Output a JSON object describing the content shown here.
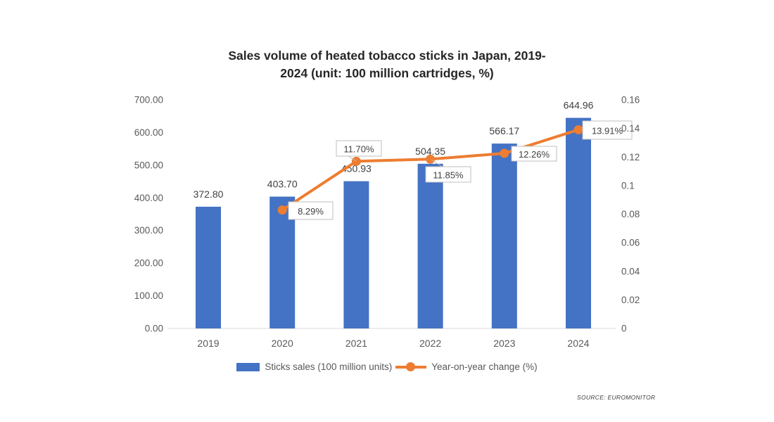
{
  "title": {
    "line1": "Sales volume of heated tobacco sticks in Japan, 2019-",
    "line2": "2024 (unit: 100 million cartridges, %)"
  },
  "source": "SOURCE: EUROMONITOR",
  "chart_data": {
    "type": "combo-bar-line",
    "categories": [
      "2019",
      "2020",
      "2021",
      "2022",
      "2023",
      "2024"
    ],
    "series": [
      {
        "name": "Sticks sales (100 million units)",
        "type": "bar",
        "axis": "left",
        "color": "#4472C4",
        "values": [
          372.8,
          403.7,
          450.93,
          504.35,
          566.17,
          644.96
        ],
        "labels": [
          "372.80",
          "403.70",
          "450.93",
          "504.35",
          "566.17",
          "644.96"
        ]
      },
      {
        "name": "Year-on-year change (%)",
        "type": "line",
        "axis": "right",
        "color": "#ED7D31",
        "values": [
          null,
          0.0829,
          0.117,
          0.1185,
          0.1226,
          0.1391
        ],
        "labels": [
          null,
          "8.29%",
          "11.70%",
          "11.85%",
          "12.26%",
          "13.91%"
        ]
      }
    ],
    "left_axis": {
      "min": 0,
      "max": 700,
      "step": 100,
      "ticks": [
        "0.00",
        "100.00",
        "200.00",
        "300.00",
        "400.00",
        "500.00",
        "600.00",
        "700.00"
      ]
    },
    "right_axis": {
      "min": 0,
      "max": 0.16,
      "step": 0.02,
      "ticks": [
        "0",
        "0.02",
        "0.04",
        "0.06",
        "0.08",
        "0.1",
        "0.12",
        "0.14",
        "0.16"
      ]
    },
    "grid": false,
    "legend_position": "bottom"
  },
  "colors": {
    "bar": "#4472C4",
    "line": "#ED7D31",
    "axis_line": "#D9D9D9",
    "tick_label": "#595959",
    "data_label": "#404040",
    "callout_border": "#BFBFBF",
    "callout_fill": "#FFFFFF",
    "title": "#262626"
  }
}
